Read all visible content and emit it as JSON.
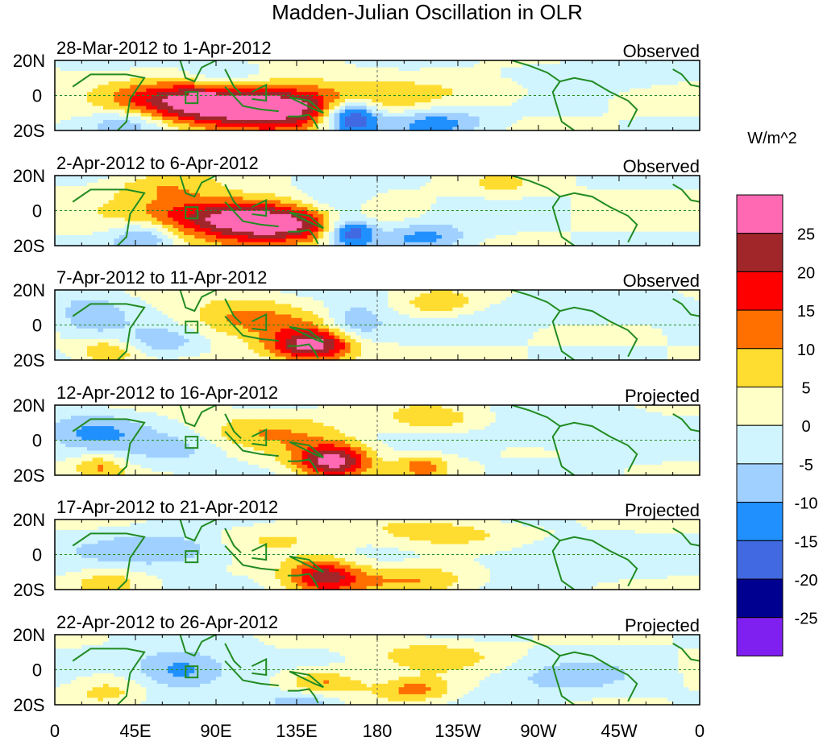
{
  "chart_data": {
    "type": "heatmap",
    "title": "Madden-Julian Oscillation in OLR",
    "units": "W/m^2",
    "x_ticks": [
      "0",
      "45E",
      "90E",
      "135E",
      "180",
      "135W",
      "90W",
      "45W",
      "0"
    ],
    "y_ticks": [
      "20N",
      "0",
      "20S"
    ],
    "xlim": [
      0,
      360
    ],
    "ylim": [
      -20,
      20
    ],
    "levels": [
      -25,
      -20,
      -15,
      -10,
      -5,
      0,
      5,
      10,
      15,
      20,
      25
    ],
    "colorbar_labels": [
      "25",
      "20",
      "15",
      "10",
      "5",
      "0",
      "-5",
      "-10",
      "-15",
      "-20",
      "-25"
    ],
    "colors": [
      "#8020F0",
      "#000090",
      "#4169E1",
      "#2090FF",
      "#A0D0FF",
      "#D0F5FF",
      "#FFFFC8",
      "#FFDD30",
      "#FF7000",
      "#FF0000",
      "#A0262A",
      "#FF69B4"
    ],
    "panels": [
      {
        "period": "28-Mar-2012 to 1-Apr-2012",
        "status": "Observed",
        "anomalies": [
          [
            125,
            -7,
            30,
            40,
            9
          ],
          [
            75,
            -3,
            18,
            30,
            8
          ],
          [
            165,
            -12,
            -32,
            12,
            7
          ],
          [
            210,
            -15,
            -14,
            20,
            6
          ],
          [
            95,
            12,
            -8,
            15,
            6
          ],
          [
            300,
            12,
            -6,
            40,
            6
          ],
          [
            40,
            -15,
            -10,
            15,
            6
          ],
          [
            250,
            5,
            4,
            40,
            8
          ]
        ]
      },
      {
        "period": "2-Apr-2012 to 6-Apr-2012",
        "status": "Observed",
        "anomalies": [
          [
            125,
            -8,
            27,
            30,
            8
          ],
          [
            85,
            -2,
            18,
            30,
            8
          ],
          [
            165,
            -12,
            -24,
            10,
            6
          ],
          [
            155,
            2,
            -10,
            15,
            8
          ],
          [
            60,
            14,
            8,
            20,
            6
          ],
          [
            50,
            -15,
            -12,
            12,
            6
          ],
          [
            205,
            -15,
            -12,
            18,
            6
          ],
          [
            250,
            14,
            6,
            15,
            5
          ]
        ]
      },
      {
        "period": "7-Apr-2012 to 11-Apr-2012",
        "status": "Observed",
        "anomalies": [
          [
            145,
            -12,
            28,
            18,
            7
          ],
          [
            105,
            4,
            12,
            25,
            8
          ],
          [
            168,
            0,
            -12,
            12,
            9
          ],
          [
            215,
            12,
            9,
            15,
            5
          ],
          [
            20,
            5,
            -10,
            15,
            8
          ],
          [
            30,
            -15,
            10,
            12,
            5
          ],
          [
            60,
            -10,
            -8,
            15,
            6
          ],
          [
            300,
            8,
            -6,
            30,
            6
          ]
        ]
      },
      {
        "period": "12-Apr-2012 to 16-Apr-2012",
        "status": "Projected",
        "anomalies": [
          [
            155,
            -12,
            28,
            15,
            7
          ],
          [
            120,
            5,
            8,
            30,
            8
          ],
          [
            20,
            5,
            -10,
            20,
            8
          ],
          [
            25,
            -15,
            10,
            10,
            5
          ],
          [
            210,
            12,
            9,
            18,
            5
          ],
          [
            205,
            -15,
            12,
            10,
            5
          ],
          [
            70,
            -5,
            -6,
            20,
            8
          ],
          [
            290,
            5,
            -6,
            30,
            8
          ]
        ]
      },
      {
        "period": "17-Apr-2012 to 21-Apr-2012",
        "status": "Projected",
        "anomalies": [
          [
            150,
            -12,
            22,
            15,
            7
          ],
          [
            65,
            3,
            -10,
            30,
            7
          ],
          [
            215,
            12,
            8,
            30,
            6
          ],
          [
            200,
            -14,
            10,
            25,
            6
          ],
          [
            30,
            -15,
            8,
            12,
            5
          ],
          [
            270,
            -3,
            -6,
            30,
            8
          ],
          [
            120,
            8,
            6,
            25,
            6
          ]
        ]
      },
      {
        "period": "22-Apr-2012 to 26-Apr-2012",
        "status": "Projected",
        "anomalies": [
          [
            150,
            -8,
            13,
            15,
            6
          ],
          [
            70,
            0,
            -14,
            20,
            8
          ],
          [
            140,
            -18,
            -12,
            15,
            5
          ],
          [
            210,
            8,
            8,
            25,
            6
          ],
          [
            200,
            -12,
            12,
            15,
            5
          ],
          [
            30,
            -12,
            7,
            15,
            6
          ],
          [
            280,
            -5,
            -6,
            30,
            8
          ]
        ]
      }
    ],
    "anomaly_format": "[lon_deg_east, lat_deg, amplitude_W/m^2, lon_halfwidth_deg, lat_halfwidth_deg]"
  }
}
